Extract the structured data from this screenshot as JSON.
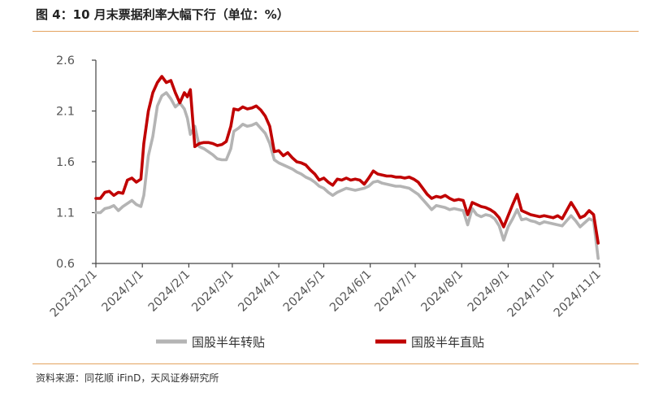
{
  "header": {
    "title": "图 4：10 月末票据利率大幅下行（单位：%）"
  },
  "footer": {
    "source": "资料来源：同花顺 iFinD，天风证券研究所"
  },
  "colors": {
    "accent_rule": "#e4a35f",
    "series_gray": "#b4b4b4",
    "series_red": "#c00000",
    "axis": "#444444"
  },
  "chart_data": {
    "type": "line",
    "title": "",
    "xlabel": "",
    "ylabel": "",
    "ylim": [
      0.6,
      2.6
    ],
    "yticks": [
      0.6,
      1.1,
      1.6,
      2.1,
      2.6
    ],
    "ytick_labels": [
      "0.6",
      "1.1",
      "1.6",
      "2.1",
      "2.6"
    ],
    "xlim": [
      "2023-12-01",
      "2024-11-01"
    ],
    "xticks": [
      "2023-12-01",
      "2024-01-01",
      "2024-02-01",
      "2024-03-01",
      "2024-04-01",
      "2024-05-01",
      "2024-06-01",
      "2024-07-01",
      "2024-08-01",
      "2024-09-01",
      "2024-10-01",
      "2024-11-01"
    ],
    "xtick_labels": [
      "2023/12/1",
      "2024/1/1",
      "2024/2/1",
      "2024/3/1",
      "2024/4/1",
      "2024/5/1",
      "2024/6/1",
      "2024/7/1",
      "2024/8/1",
      "2024/9/1",
      "2024/10/1",
      "2024/11/1"
    ],
    "grid": false,
    "legend_position": "bottom",
    "series": [
      {
        "name": "国股半年转贴",
        "color": "#b4b4b4",
        "points": [
          [
            "2023-12-01",
            1.1
          ],
          [
            "2023-12-04",
            1.1
          ],
          [
            "2023-12-07",
            1.14
          ],
          [
            "2023-12-10",
            1.15
          ],
          [
            "2023-12-13",
            1.17
          ],
          [
            "2023-12-16",
            1.12
          ],
          [
            "2023-12-19",
            1.16
          ],
          [
            "2023-12-22",
            1.19
          ],
          [
            "2023-12-25",
            1.22
          ],
          [
            "2023-12-28",
            1.18
          ],
          [
            "2023-12-31",
            1.16
          ],
          [
            "2024-01-02",
            1.27
          ],
          [
            "2024-01-05",
            1.66
          ],
          [
            "2024-01-08",
            1.85
          ],
          [
            "2024-01-11",
            2.15
          ],
          [
            "2024-01-14",
            2.25
          ],
          [
            "2024-01-17",
            2.28
          ],
          [
            "2024-01-20",
            2.22
          ],
          [
            "2024-01-23",
            2.14
          ],
          [
            "2024-01-26",
            2.18
          ],
          [
            "2024-01-29",
            2.12
          ],
          [
            "2024-01-31",
            2.03
          ],
          [
            "2024-02-02",
            1.87
          ],
          [
            "2024-02-05",
            1.95
          ],
          [
            "2024-02-08",
            1.75
          ],
          [
            "2024-02-11",
            1.73
          ],
          [
            "2024-02-14",
            1.7
          ],
          [
            "2024-02-17",
            1.67
          ],
          [
            "2024-02-20",
            1.63
          ],
          [
            "2024-02-23",
            1.62
          ],
          [
            "2024-02-26",
            1.62
          ],
          [
            "2024-02-29",
            1.73
          ],
          [
            "2024-03-02",
            1.9
          ],
          [
            "2024-03-05",
            1.93
          ],
          [
            "2024-03-08",
            1.97
          ],
          [
            "2024-03-11",
            1.95
          ],
          [
            "2024-03-14",
            1.96
          ],
          [
            "2024-03-17",
            1.98
          ],
          [
            "2024-03-20",
            1.93
          ],
          [
            "2024-03-23",
            1.88
          ],
          [
            "2024-03-26",
            1.78
          ],
          [
            "2024-03-29",
            1.62
          ],
          [
            "2024-04-01",
            1.59
          ],
          [
            "2024-04-04",
            1.57
          ],
          [
            "2024-04-07",
            1.55
          ],
          [
            "2024-04-10",
            1.53
          ],
          [
            "2024-04-13",
            1.5
          ],
          [
            "2024-04-16",
            1.48
          ],
          [
            "2024-04-19",
            1.45
          ],
          [
            "2024-04-22",
            1.43
          ],
          [
            "2024-04-25",
            1.4
          ],
          [
            "2024-04-28",
            1.36
          ],
          [
            "2024-05-01",
            1.34
          ],
          [
            "2024-05-04",
            1.3
          ],
          [
            "2024-05-07",
            1.27
          ],
          [
            "2024-05-10",
            1.3
          ],
          [
            "2024-05-13",
            1.32
          ],
          [
            "2024-05-16",
            1.34
          ],
          [
            "2024-05-19",
            1.33
          ],
          [
            "2024-05-22",
            1.32
          ],
          [
            "2024-05-25",
            1.33
          ],
          [
            "2024-05-28",
            1.34
          ],
          [
            "2024-05-31",
            1.36
          ],
          [
            "2024-06-03",
            1.4
          ],
          [
            "2024-06-06",
            1.41
          ],
          [
            "2024-06-09",
            1.39
          ],
          [
            "2024-06-12",
            1.38
          ],
          [
            "2024-06-15",
            1.37
          ],
          [
            "2024-06-18",
            1.36
          ],
          [
            "2024-06-21",
            1.36
          ],
          [
            "2024-06-24",
            1.35
          ],
          [
            "2024-06-27",
            1.34
          ],
          [
            "2024-06-30",
            1.31
          ],
          [
            "2024-07-03",
            1.28
          ],
          [
            "2024-07-06",
            1.23
          ],
          [
            "2024-07-09",
            1.18
          ],
          [
            "2024-07-12",
            1.13
          ],
          [
            "2024-07-15",
            1.17
          ],
          [
            "2024-07-18",
            1.16
          ],
          [
            "2024-07-21",
            1.15
          ],
          [
            "2024-07-24",
            1.13
          ],
          [
            "2024-07-27",
            1.14
          ],
          [
            "2024-07-30",
            1.13
          ],
          [
            "2024-08-02",
            1.12
          ],
          [
            "2024-08-05",
            0.98
          ],
          [
            "2024-08-08",
            1.14
          ],
          [
            "2024-08-11",
            1.08
          ],
          [
            "2024-08-14",
            1.06
          ],
          [
            "2024-08-17",
            1.08
          ],
          [
            "2024-08-20",
            1.07
          ],
          [
            "2024-08-23",
            1.04
          ],
          [
            "2024-08-26",
            0.97
          ],
          [
            "2024-08-29",
            0.83
          ],
          [
            "2024-09-01",
            0.96
          ],
          [
            "2024-09-04",
            1.04
          ],
          [
            "2024-09-07",
            1.13
          ],
          [
            "2024-09-10",
            1.03
          ],
          [
            "2024-09-13",
            1.04
          ],
          [
            "2024-09-16",
            1.02
          ],
          [
            "2024-09-19",
            1.01
          ],
          [
            "2024-09-22",
            0.99
          ],
          [
            "2024-09-25",
            1.01
          ],
          [
            "2024-09-28",
            1.0
          ],
          [
            "2024-10-01",
            0.99
          ],
          [
            "2024-10-04",
            0.98
          ],
          [
            "2024-10-07",
            0.97
          ],
          [
            "2024-10-10",
            1.02
          ],
          [
            "2024-10-13",
            1.07
          ],
          [
            "2024-10-16",
            1.02
          ],
          [
            "2024-10-19",
            0.96
          ],
          [
            "2024-10-22",
            1.0
          ],
          [
            "2024-10-25",
            1.04
          ],
          [
            "2024-10-28",
            1.02
          ],
          [
            "2024-10-31",
            0.65
          ]
        ]
      },
      {
        "name": "国股半年直贴",
        "color": "#c00000",
        "points": [
          [
            "2023-12-01",
            1.24
          ],
          [
            "2023-12-04",
            1.24
          ],
          [
            "2023-12-07",
            1.3
          ],
          [
            "2023-12-10",
            1.31
          ],
          [
            "2023-12-13",
            1.27
          ],
          [
            "2023-12-16",
            1.3
          ],
          [
            "2023-12-19",
            1.29
          ],
          [
            "2023-12-22",
            1.42
          ],
          [
            "2023-12-25",
            1.44
          ],
          [
            "2023-12-28",
            1.4
          ],
          [
            "2023-12-31",
            1.43
          ],
          [
            "2024-01-02",
            1.78
          ],
          [
            "2024-01-05",
            2.1
          ],
          [
            "2024-01-08",
            2.28
          ],
          [
            "2024-01-11",
            2.38
          ],
          [
            "2024-01-14",
            2.44
          ],
          [
            "2024-01-17",
            2.38
          ],
          [
            "2024-01-20",
            2.4
          ],
          [
            "2024-01-23",
            2.28
          ],
          [
            "2024-01-26",
            2.18
          ],
          [
            "2024-01-29",
            2.28
          ],
          [
            "2024-01-31",
            2.24
          ],
          [
            "2024-02-02",
            2.31
          ],
          [
            "2024-02-05",
            1.75
          ],
          [
            "2024-02-08",
            1.78
          ],
          [
            "2024-02-11",
            1.79
          ],
          [
            "2024-02-14",
            1.79
          ],
          [
            "2024-02-17",
            1.78
          ],
          [
            "2024-02-20",
            1.76
          ],
          [
            "2024-02-23",
            1.77
          ],
          [
            "2024-02-26",
            1.8
          ],
          [
            "2024-02-29",
            1.95
          ],
          [
            "2024-03-02",
            2.12
          ],
          [
            "2024-03-05",
            2.11
          ],
          [
            "2024-03-08",
            2.14
          ],
          [
            "2024-03-11",
            2.12
          ],
          [
            "2024-03-14",
            2.13
          ],
          [
            "2024-03-17",
            2.15
          ],
          [
            "2024-03-20",
            2.11
          ],
          [
            "2024-03-23",
            2.05
          ],
          [
            "2024-03-26",
            1.95
          ],
          [
            "2024-03-29",
            1.7
          ],
          [
            "2024-04-01",
            1.71
          ],
          [
            "2024-04-04",
            1.66
          ],
          [
            "2024-04-07",
            1.69
          ],
          [
            "2024-04-10",
            1.64
          ],
          [
            "2024-04-13",
            1.6
          ],
          [
            "2024-04-16",
            1.59
          ],
          [
            "2024-04-19",
            1.57
          ],
          [
            "2024-04-22",
            1.52
          ],
          [
            "2024-04-25",
            1.48
          ],
          [
            "2024-04-28",
            1.42
          ],
          [
            "2024-05-01",
            1.44
          ],
          [
            "2024-05-04",
            1.4
          ],
          [
            "2024-05-07",
            1.37
          ],
          [
            "2024-05-10",
            1.43
          ],
          [
            "2024-05-13",
            1.42
          ],
          [
            "2024-05-16",
            1.44
          ],
          [
            "2024-05-19",
            1.42
          ],
          [
            "2024-05-22",
            1.43
          ],
          [
            "2024-05-25",
            1.42
          ],
          [
            "2024-05-28",
            1.38
          ],
          [
            "2024-05-31",
            1.44
          ],
          [
            "2024-06-03",
            1.51
          ],
          [
            "2024-06-06",
            1.48
          ],
          [
            "2024-06-09",
            1.47
          ],
          [
            "2024-06-12",
            1.46
          ],
          [
            "2024-06-15",
            1.46
          ],
          [
            "2024-06-18",
            1.45
          ],
          [
            "2024-06-21",
            1.45
          ],
          [
            "2024-06-24",
            1.44
          ],
          [
            "2024-06-27",
            1.45
          ],
          [
            "2024-06-30",
            1.43
          ],
          [
            "2024-07-03",
            1.4
          ],
          [
            "2024-07-06",
            1.34
          ],
          [
            "2024-07-09",
            1.28
          ],
          [
            "2024-07-12",
            1.24
          ],
          [
            "2024-07-15",
            1.26
          ],
          [
            "2024-07-18",
            1.25
          ],
          [
            "2024-07-21",
            1.27
          ],
          [
            "2024-07-24",
            1.24
          ],
          [
            "2024-07-27",
            1.22
          ],
          [
            "2024-07-30",
            1.23
          ],
          [
            "2024-08-02",
            1.22
          ],
          [
            "2024-08-05",
            1.08
          ],
          [
            "2024-08-08",
            1.2
          ],
          [
            "2024-08-11",
            1.18
          ],
          [
            "2024-08-14",
            1.16
          ],
          [
            "2024-08-17",
            1.15
          ],
          [
            "2024-08-20",
            1.13
          ],
          [
            "2024-08-23",
            1.1
          ],
          [
            "2024-08-26",
            1.05
          ],
          [
            "2024-08-29",
            0.96
          ],
          [
            "2024-09-01",
            1.07
          ],
          [
            "2024-09-04",
            1.18
          ],
          [
            "2024-09-07",
            1.28
          ],
          [
            "2024-09-10",
            1.12
          ],
          [
            "2024-09-13",
            1.1
          ],
          [
            "2024-09-16",
            1.08
          ],
          [
            "2024-09-19",
            1.07
          ],
          [
            "2024-09-22",
            1.06
          ],
          [
            "2024-09-25",
            1.07
          ],
          [
            "2024-09-28",
            1.06
          ],
          [
            "2024-10-01",
            1.05
          ],
          [
            "2024-10-04",
            1.07
          ],
          [
            "2024-10-07",
            1.04
          ],
          [
            "2024-10-10",
            1.12
          ],
          [
            "2024-10-13",
            1.2
          ],
          [
            "2024-10-16",
            1.13
          ],
          [
            "2024-10-19",
            1.05
          ],
          [
            "2024-10-22",
            1.07
          ],
          [
            "2024-10-25",
            1.12
          ],
          [
            "2024-10-28",
            1.08
          ],
          [
            "2024-10-31",
            0.8
          ]
        ]
      }
    ]
  }
}
